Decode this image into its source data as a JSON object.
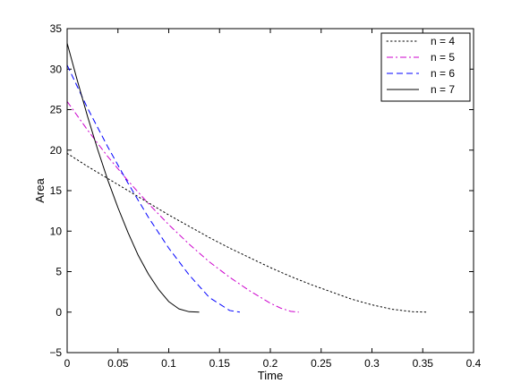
{
  "chart_data": {
    "type": "line",
    "title": "",
    "xlabel": "Time",
    "ylabel": "Area",
    "xlim": [
      0,
      0.4
    ],
    "ylim": [
      -5,
      35
    ],
    "xticks": [
      0,
      0.05,
      0.1,
      0.15,
      0.2,
      0.25,
      0.3,
      0.35,
      0.4
    ],
    "xtick_labels": [
      "0",
      "0.05",
      "0.1",
      "0.15",
      "0.2",
      "0.25",
      "0.3",
      "0.35",
      "0.4"
    ],
    "yticks": [
      -5,
      0,
      5,
      10,
      15,
      20,
      25,
      30,
      35
    ],
    "ytick_labels": [
      "−5",
      "0",
      "5",
      "10",
      "15",
      "20",
      "25",
      "30",
      "35"
    ],
    "grid": false,
    "legend_position": "top-right",
    "series": [
      {
        "name": "n = 4",
        "color": "#000000",
        "line_style": "dotted",
        "x": [
          0,
          0.02,
          0.04,
          0.06,
          0.08,
          0.1,
          0.12,
          0.14,
          0.16,
          0.18,
          0.2,
          0.22,
          0.24,
          0.26,
          0.28,
          0.3,
          0.32,
          0.34,
          0.355
        ],
        "y": [
          19.6,
          18.0,
          16.5,
          15.0,
          13.5,
          12.0,
          10.6,
          9.2,
          7.9,
          6.7,
          5.5,
          4.4,
          3.4,
          2.5,
          1.6,
          0.9,
          0.35,
          0.05,
          0.0
        ]
      },
      {
        "name": "n = 5",
        "color": "#cc00cc",
        "line_style": "dashdot",
        "x": [
          0,
          0.02,
          0.04,
          0.06,
          0.08,
          0.1,
          0.12,
          0.14,
          0.16,
          0.18,
          0.2,
          0.21,
          0.22,
          0.228
        ],
        "y": [
          26.0,
          22.5,
          19.2,
          16.2,
          13.4,
          10.8,
          8.4,
          6.2,
          4.3,
          2.6,
          1.1,
          0.5,
          0.1,
          0.0
        ]
      },
      {
        "name": "n = 6",
        "color": "#0000ff",
        "line_style": "dashed",
        "x": [
          0,
          0.02,
          0.04,
          0.06,
          0.08,
          0.1,
          0.12,
          0.14,
          0.16,
          0.17
        ],
        "y": [
          30.5,
          25.2,
          20.4,
          15.9,
          11.7,
          7.9,
          4.6,
          1.8,
          0.2,
          0.0
        ]
      },
      {
        "name": "n = 7",
        "color": "#000000",
        "line_style": "solid",
        "x": [
          0,
          0.01,
          0.02,
          0.03,
          0.04,
          0.05,
          0.06,
          0.07,
          0.08,
          0.09,
          0.1,
          0.11,
          0.12,
          0.13
        ],
        "y": [
          33.2,
          28.6,
          24.2,
          20.1,
          16.3,
          12.9,
          9.8,
          7.0,
          4.7,
          2.8,
          1.3,
          0.4,
          0.05,
          0.0
        ]
      }
    ]
  }
}
